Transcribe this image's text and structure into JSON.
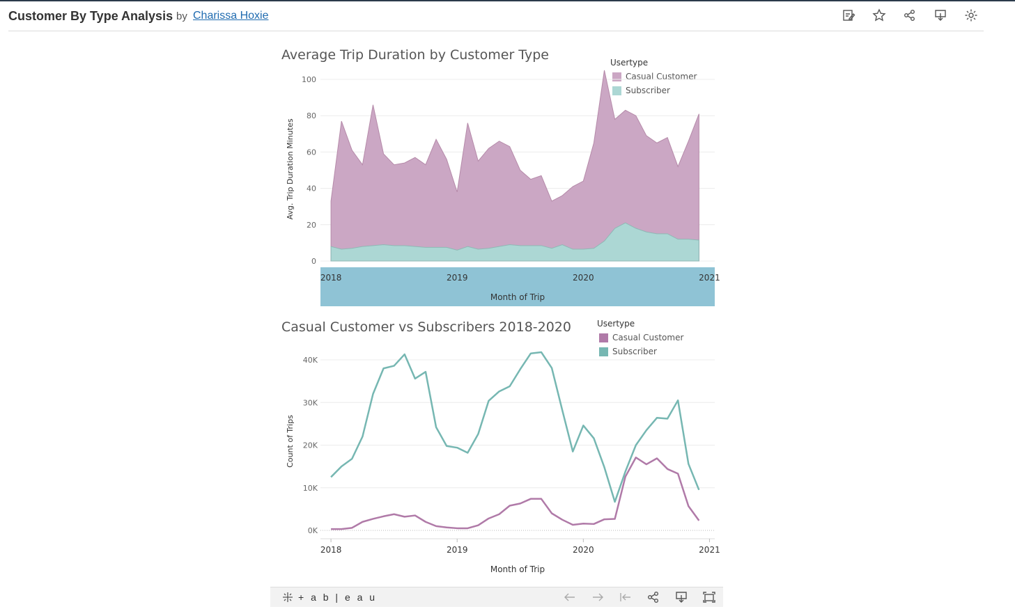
{
  "header": {
    "title": "Customer By Type Analysis",
    "by": "by",
    "author": "Charissa Hoxie",
    "icons": [
      "edit-icon",
      "star-icon",
      "share-icon",
      "download-icon",
      "settings-icon"
    ]
  },
  "chart1": {
    "title": "Average Trip Duration by Customer Type",
    "legend": {
      "title": "Usertype",
      "items": [
        "Casual Customer",
        "Subscriber"
      ]
    }
  },
  "chart2": {
    "title": "Casual Customer vs Subscribers 2018-2020",
    "legend": {
      "title": "Usertype",
      "items": [
        "Casual Customer",
        "Subscriber"
      ]
    }
  },
  "toolbar": {
    "logo": "+ a b | e a u",
    "icons": [
      "undo-icon",
      "redo-icon",
      "revert-icon",
      "share-icon",
      "download-icon",
      "fullscreen-icon"
    ]
  },
  "colors": {
    "casual_area": "#cba7c4",
    "subscriber_area": "#acd7d4",
    "casual_line": "#b07aa8",
    "subscriber_line": "#76b7b2",
    "axis_band": "#8fc3d5"
  },
  "chart_data": [
    {
      "type": "area",
      "stacked": false,
      "title": "Average Trip Duration by Customer Type",
      "xlabel": "Month of Trip",
      "ylabel": "Avg. Trip Duration Minutes",
      "x_ticks": [
        "2018",
        "2019",
        "2020",
        "2021"
      ],
      "x_range": [
        "2018-01",
        "2021-01"
      ],
      "ylim": [
        0,
        105
      ],
      "y_ticks": [
        0,
        20,
        40,
        60,
        80,
        100
      ],
      "x": [
        "2018-01",
        "2018-02",
        "2018-03",
        "2018-04",
        "2018-05",
        "2018-06",
        "2018-07",
        "2018-08",
        "2018-09",
        "2018-10",
        "2018-11",
        "2018-12",
        "2019-01",
        "2019-02",
        "2019-03",
        "2019-04",
        "2019-05",
        "2019-06",
        "2019-07",
        "2019-08",
        "2019-09",
        "2019-10",
        "2019-11",
        "2019-12",
        "2020-01",
        "2020-02",
        "2020-03",
        "2020-04",
        "2020-05",
        "2020-06",
        "2020-07",
        "2020-08",
        "2020-09",
        "2020-10",
        "2020-11",
        "2020-12"
      ],
      "series": [
        {
          "name": "Casual Customer",
          "values": [
            33,
            77,
            61,
            53,
            86,
            59,
            53,
            54,
            57,
            53,
            67,
            56,
            38,
            76,
            55,
            62,
            66,
            63,
            50,
            45,
            47,
            33,
            36,
            41,
            44,
            65,
            105,
            78,
            83,
            80,
            69,
            65,
            68,
            52,
            66,
            81
          ]
        },
        {
          "name": "Subscriber",
          "values": [
            8,
            6.5,
            7,
            8,
            8.5,
            9,
            8.5,
            8.5,
            8,
            7.5,
            7.5,
            7.5,
            6,
            8,
            6.5,
            7,
            8,
            9,
            8.5,
            8.5,
            8.5,
            7,
            9,
            6.5,
            6.5,
            7,
            11,
            18,
            21,
            18,
            16,
            15,
            15,
            12,
            12,
            11.5
          ]
        }
      ],
      "legend": "top-right",
      "grid": true
    },
    {
      "type": "line",
      "title": "Casual Customer vs Subscribers 2018-2020",
      "xlabel": "Month of Trip",
      "ylabel": "Count of Trips",
      "x_ticks": [
        "2018",
        "2019",
        "2020",
        "2021"
      ],
      "x_range": [
        "2018-01",
        "2021-01"
      ],
      "ylim": [
        0,
        42000
      ],
      "y_ticks": [
        "0K",
        "10K",
        "20K",
        "30K",
        "40K"
      ],
      "x": [
        "2018-01",
        "2018-02",
        "2018-03",
        "2018-04",
        "2018-05",
        "2018-06",
        "2018-07",
        "2018-08",
        "2018-09",
        "2018-10",
        "2018-11",
        "2018-12",
        "2019-01",
        "2019-02",
        "2019-03",
        "2019-04",
        "2019-05",
        "2019-06",
        "2019-07",
        "2019-08",
        "2019-09",
        "2019-10",
        "2019-11",
        "2019-12",
        "2020-01",
        "2020-02",
        "2020-03",
        "2020-04",
        "2020-05",
        "2020-06",
        "2020-07",
        "2020-08",
        "2020-09",
        "2020-10",
        "2020-11",
        "2020-12"
      ],
      "series": [
        {
          "name": "Casual Customer",
          "values": [
            300,
            300,
            600,
            2000,
            2700,
            3300,
            3800,
            3200,
            3500,
            2000,
            1000,
            700,
            500,
            500,
            1200,
            2800,
            3800,
            5800,
            6300,
            7400,
            7400,
            4000,
            2500,
            1300,
            1600,
            1500,
            2600,
            2700,
            12600,
            17100,
            15500,
            16900,
            14400,
            13300,
            5700,
            2300
          ]
        },
        {
          "name": "Subscriber",
          "values": [
            12500,
            15000,
            16800,
            22000,
            32000,
            38000,
            38600,
            41300,
            35600,
            37200,
            24200,
            19800,
            19400,
            18200,
            22600,
            30400,
            32600,
            33800,
            37800,
            41500,
            41800,
            38100,
            28200,
            18500,
            24600,
            21600,
            14800,
            6700,
            13800,
            20000,
            23500,
            26400,
            26200,
            30500,
            15600,
            9500
          ]
        }
      ],
      "legend": "top-right",
      "grid": true
    }
  ]
}
